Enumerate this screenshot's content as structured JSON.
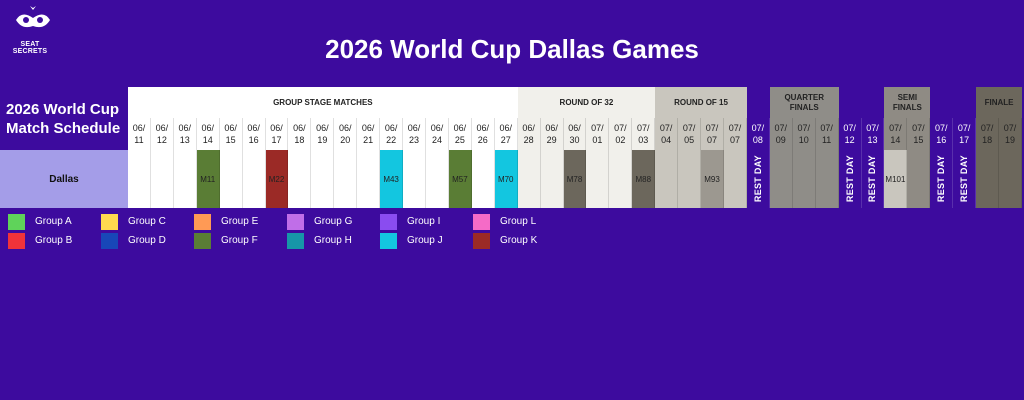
{
  "logo": "SEAT SECRETS",
  "title": "2026 World Cup Dallas Games",
  "table": {
    "corner": "2026 World Cup Match Schedule",
    "row_label": "Dallas",
    "sections": [
      {
        "name": "GROUP STAGE MATCHES",
        "fill": "#ffffff",
        "days": [
          {
            "month": "06/",
            "day": "11"
          },
          {
            "month": "06/",
            "day": "12"
          },
          {
            "month": "06/",
            "day": "13"
          },
          {
            "month": "06/",
            "day": "14",
            "match": "M11",
            "color": "#5a7d35"
          },
          {
            "month": "06/",
            "day": "15"
          },
          {
            "month": "06/",
            "day": "16"
          },
          {
            "month": "06/",
            "day": "17",
            "match": "M22",
            "color": "#9b2a26"
          },
          {
            "month": "06/",
            "day": "18"
          },
          {
            "month": "06/",
            "day": "19"
          },
          {
            "month": "06/",
            "day": "20"
          },
          {
            "month": "06/",
            "day": "21"
          },
          {
            "month": "06/",
            "day": "22",
            "match": "M43",
            "color": "#13c6e0"
          },
          {
            "month": "06/",
            "day": "23"
          },
          {
            "month": "06/",
            "day": "24"
          },
          {
            "month": "06/",
            "day": "25",
            "match": "M57",
            "color": "#5a7d35"
          },
          {
            "month": "06/",
            "day": "26"
          },
          {
            "month": "06/",
            "day": "27",
            "match": "M70",
            "color": "#13c6e0"
          }
        ]
      },
      {
        "name": "ROUND OF 32",
        "fill": "#f1f0eb",
        "days": [
          {
            "month": "06/",
            "day": "28"
          },
          {
            "month": "06/",
            "day": "29"
          },
          {
            "month": "06/",
            "day": "30",
            "match": "M78",
            "color": "#6c675c"
          },
          {
            "month": "07/",
            "day": "01"
          },
          {
            "month": "07/",
            "day": "02"
          },
          {
            "month": "07/",
            "day": "03",
            "match": "M88",
            "color": "#6c675c"
          }
        ]
      },
      {
        "name": "ROUND OF 15",
        "fill": "#c9c6be",
        "days": [
          {
            "month": "07/",
            "day": "04"
          },
          {
            "month": "07/",
            "day": "05"
          },
          {
            "month": "07/",
            "day": "07",
            "match": "M93",
            "color": "#9c9890"
          },
          {
            "month": "07/",
            "day": "07"
          }
        ]
      },
      {
        "fill": "#3d0b9e",
        "rest_day": "REST DAY",
        "days": [
          {
            "month": "07/",
            "day": "08"
          }
        ]
      },
      {
        "name": "QUARTER FINALS",
        "fill": "#8f8d88",
        "days": [
          {
            "month": "07/",
            "day": "09"
          },
          {
            "month": "07/",
            "day": "10"
          },
          {
            "month": "07/",
            "day": "11"
          }
        ]
      },
      {
        "fill": "#3d0b9e",
        "rest_day": "REST DAY",
        "days": [
          {
            "month": "07/",
            "day": "12"
          },
          {
            "month": "07/",
            "day": "13"
          }
        ]
      },
      {
        "name": "SEMI FINALS",
        "fill": "#8f8b84",
        "days": [
          {
            "month": "07/",
            "day": "14",
            "match": "M101",
            "color": "#c9c6be"
          },
          {
            "month": "07/",
            "day": "15"
          }
        ]
      },
      {
        "fill": "#3d0b9e",
        "rest_day": "REST DAY",
        "days": [
          {
            "month": "07/",
            "day": "16"
          },
          {
            "month": "07/",
            "day": "17"
          }
        ]
      },
      {
        "name": "FINALE",
        "fill": "#6c675c",
        "days": [
          {
            "month": "07/",
            "day": "18"
          },
          {
            "month": "07/",
            "day": "19"
          }
        ]
      }
    ]
  },
  "legend": [
    {
      "name": "Group A",
      "color": "#5fd35a"
    },
    {
      "name": "Group B",
      "color": "#f0333a"
    },
    {
      "name": "Group C",
      "color": "#ffd94f"
    },
    {
      "name": "Group D",
      "color": "#1847b8"
    },
    {
      "name": "Group E",
      "color": "#ff9a55"
    },
    {
      "name": "Group F",
      "color": "#5a7d35"
    },
    {
      "name": "Group G",
      "color": "#c06ee8"
    },
    {
      "name": "Group H",
      "color": "#1796a8"
    },
    {
      "name": "Group I",
      "color": "#8a4cf0"
    },
    {
      "name": "Group J",
      "color": "#13c6e0"
    },
    {
      "name": "Group L",
      "color": "#f56bc7"
    },
    {
      "name": "Group K",
      "color": "#9b2a26"
    }
  ]
}
